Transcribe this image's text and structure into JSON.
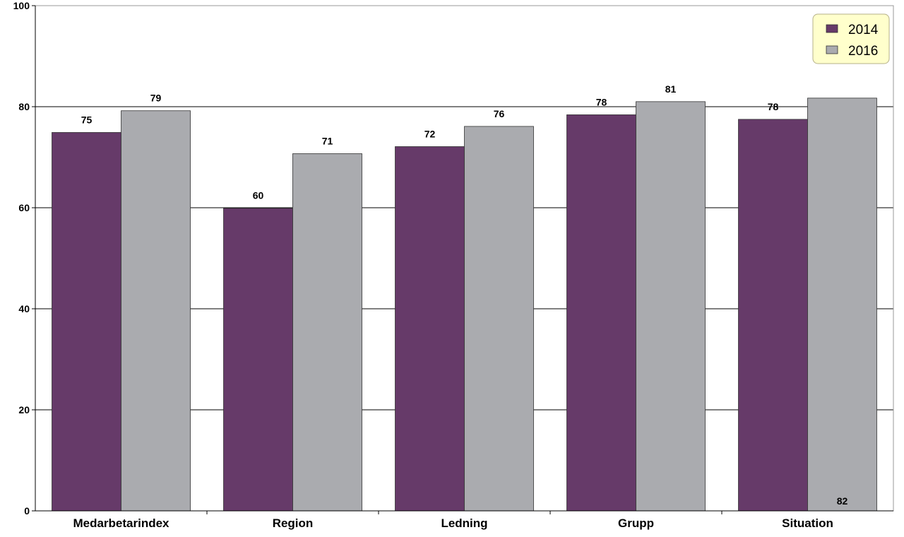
{
  "chart_data": {
    "type": "bar",
    "categories": [
      "Medarbetarindex",
      "Region",
      "Ledning",
      "Grupp",
      "Situation"
    ],
    "series": [
      {
        "name": "2014",
        "values": [
          74.9,
          59.9,
          72.1,
          78.4,
          77.5
        ],
        "labels": [
          "75",
          "60",
          "72",
          "78",
          "78"
        ],
        "color": "#663a69"
      },
      {
        "name": "2016",
        "values": [
          79.2,
          70.7,
          76.1,
          81.0,
          81.7
        ],
        "labels": [
          "79",
          "71",
          "76",
          "81",
          "82"
        ],
        "color": "#aaabaf"
      }
    ],
    "ylim": [
      0,
      100
    ],
    "yticks": [
      "0",
      "20",
      "40",
      "60",
      "80",
      "100"
    ],
    "grid": true,
    "legend_position": "top-right",
    "legend_background": "#ffffcc",
    "title": "",
    "xlabel": "",
    "ylabel": ""
  }
}
